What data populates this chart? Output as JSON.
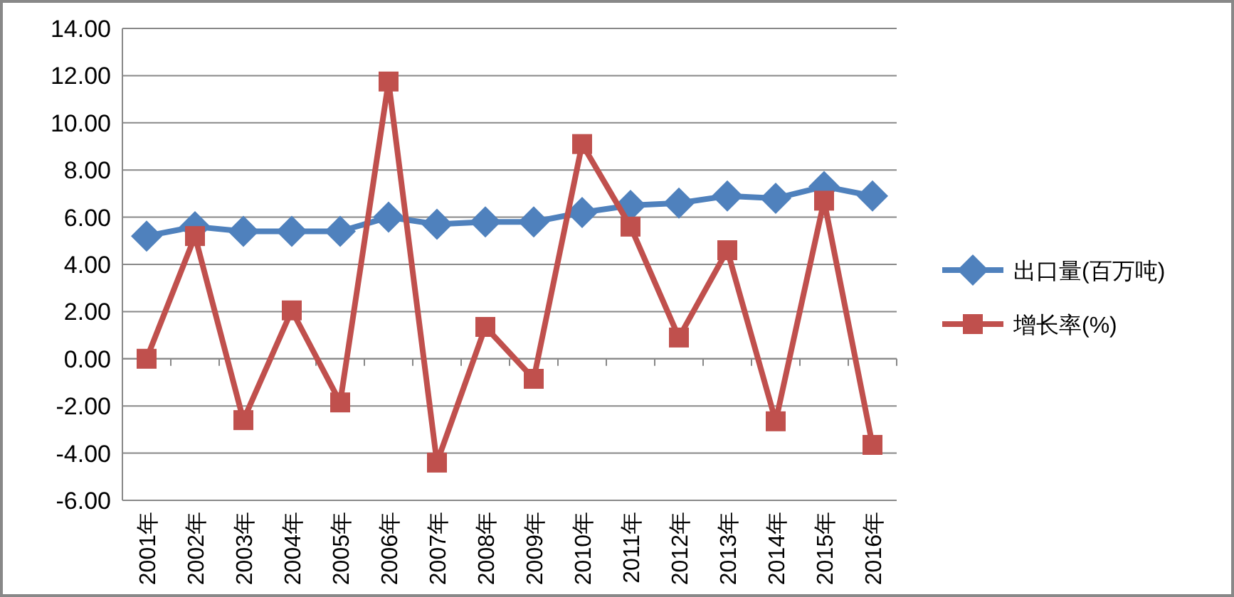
{
  "chart_data": {
    "type": "line",
    "categories": [
      "2001年",
      "2002年",
      "2003年",
      "2004年",
      "2005年",
      "2006年",
      "2007年",
      "2008年",
      "2009年",
      "2010年",
      "2011年",
      "2012年",
      "2013年",
      "2014年",
      "2015年",
      "2016年"
    ],
    "series": [
      {
        "name": "出口量(百万吨)",
        "color": "#4f81bd",
        "marker": "diamond",
        "values": [
          5.2,
          5.6,
          5.4,
          5.4,
          5.4,
          6.0,
          5.7,
          5.8,
          5.8,
          6.2,
          6.5,
          6.6,
          6.9,
          6.8,
          7.3,
          6.9
        ]
      },
      {
        "name": "增长率(%)",
        "color": "#c0504d",
        "marker": "square",
        "values": [
          0.0,
          5.2,
          -2.6,
          2.05,
          -1.85,
          11.75,
          -4.4,
          1.35,
          -0.85,
          9.1,
          5.6,
          0.9,
          4.6,
          -2.65,
          6.7,
          -3.65
        ]
      }
    ],
    "ylim": [
      -6,
      14
    ],
    "yticks": [
      {
        "value": -6,
        "label": "-6.00"
      },
      {
        "value": -4,
        "label": "-4.00"
      },
      {
        "value": -2,
        "label": "-2.00"
      },
      {
        "value": 0,
        "label": "0.00"
      },
      {
        "value": 2,
        "label": "2.00"
      },
      {
        "value": 4,
        "label": "4.00"
      },
      {
        "value": 6,
        "label": "6.00"
      },
      {
        "value": 8,
        "label": "8.00"
      },
      {
        "value": 10,
        "label": "10.00"
      },
      {
        "value": 12,
        "label": "12.00"
      },
      {
        "value": 14,
        "label": "14.00"
      }
    ],
    "grid": "y",
    "legend": "right",
    "line_style": "solid"
  }
}
